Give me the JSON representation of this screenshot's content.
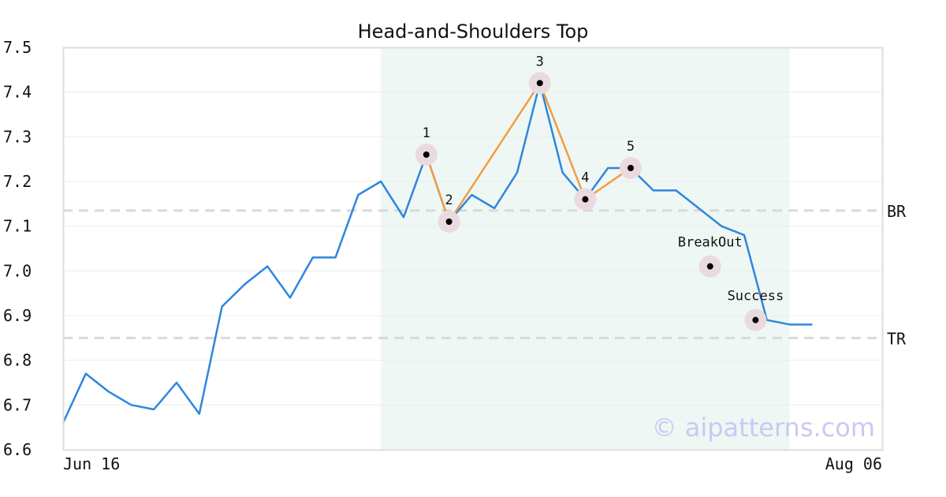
{
  "chart_data": {
    "type": "line",
    "title": "Head-and-Shoulders Top",
    "ylim": [
      6.6,
      7.5
    ],
    "yticks": [
      "7.5",
      "7.4",
      "7.3",
      "7.2",
      "7.1",
      "7.0",
      "6.9",
      "6.8",
      "6.7",
      "6.6"
    ],
    "xtick_labels": [
      "Jun 16",
      "Aug 06"
    ],
    "series": [
      {
        "values": [
          6.66,
          6.77,
          6.73,
          6.7,
          6.69,
          6.75,
          6.68,
          6.92,
          6.97,
          7.01,
          6.94,
          7.03,
          7.03,
          7.17,
          7.2,
          7.12,
          7.26,
          7.11,
          7.17,
          7.14,
          7.22,
          7.42,
          7.22,
          7.16,
          7.23,
          7.23,
          7.18,
          7.18,
          7.14,
          7.1,
          7.08,
          6.89,
          6.88,
          6.88
        ]
      }
    ],
    "pattern_region": {
      "start_index": 14,
      "end_index": 32
    },
    "pattern_points": [
      {
        "label": "1",
        "index": 16,
        "value": 7.26
      },
      {
        "label": "2",
        "index": 17,
        "value": 7.11
      },
      {
        "label": "3",
        "index": 21,
        "value": 7.42
      },
      {
        "label": "4",
        "index": 23,
        "value": 7.16
      },
      {
        "label": "5",
        "index": 25,
        "value": 7.23
      }
    ],
    "markers": [
      {
        "label": "BreakOut",
        "index": 28.5,
        "value": 7.01
      },
      {
        "label": "Success",
        "index": 30.5,
        "value": 6.89
      }
    ],
    "levels": [
      {
        "label": "BR",
        "value": 7.135
      },
      {
        "label": "TR",
        "value": 6.85
      }
    ],
    "watermark": "© aipatterns.com",
    "colors": {
      "price_line": "#2e86de",
      "pattern_line": "#f39c42",
      "region_fill": "#eef7f3",
      "marker_halo": "#ead9df",
      "level_line": "#d9d9d9"
    }
  }
}
